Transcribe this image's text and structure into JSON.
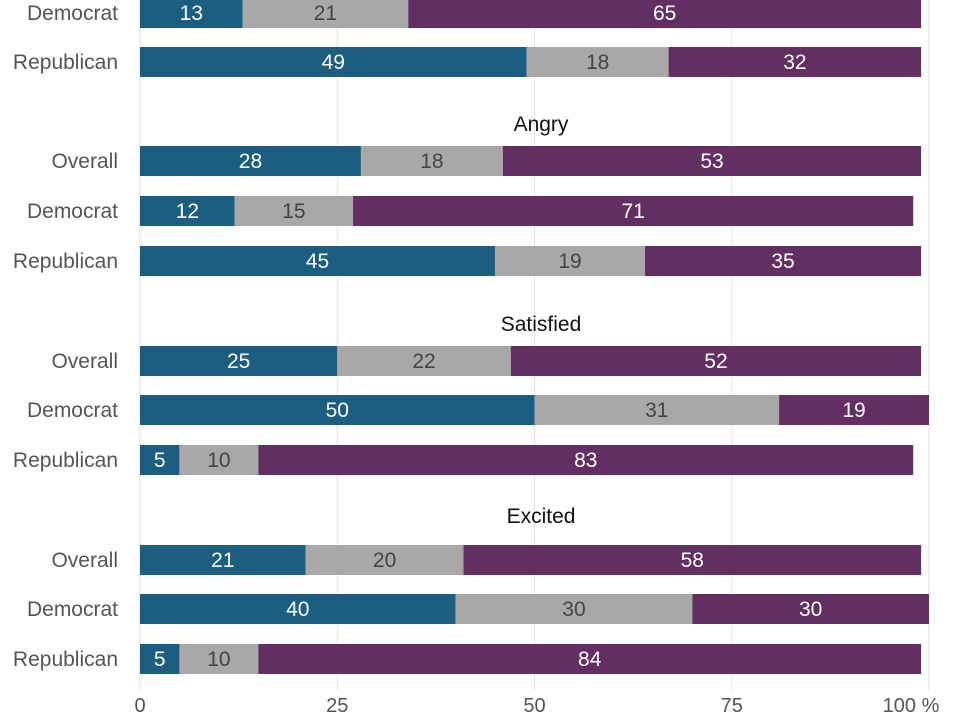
{
  "colors": {
    "series_0": "#1b5e80",
    "series_1": "#a8a8a8",
    "series_2": "#632f63",
    "label_on_dark": "#ffffff",
    "label_on_light": "#444444",
    "grid": "#e2e2e2"
  },
  "chart_data": {
    "type": "bar",
    "orientation": "horizontal",
    "stacked": true,
    "xlim": [
      0,
      100
    ],
    "x_ticks": [
      "0",
      "25",
      "50",
      "75",
      "100 %"
    ],
    "grid": true,
    "series": [
      {
        "color": "series_0"
      },
      {
        "color": "series_1"
      },
      {
        "color": "series_2"
      }
    ],
    "groups": [
      {
        "title": "",
        "rows": [
          {
            "label": "Democrat",
            "values": [
              13,
              21,
              65
            ]
          },
          {
            "label": "Republican",
            "values": [
              49,
              18,
              32
            ]
          }
        ]
      },
      {
        "title": "Angry",
        "rows": [
          {
            "label": "Overall",
            "values": [
              28,
              18,
              53
            ]
          },
          {
            "label": "Democrat",
            "values": [
              12,
              15,
              71
            ]
          },
          {
            "label": "Republican",
            "values": [
              45,
              19,
              35
            ]
          }
        ]
      },
      {
        "title": "Satisfied",
        "rows": [
          {
            "label": "Overall",
            "values": [
              25,
              22,
              52
            ]
          },
          {
            "label": "Democrat",
            "values": [
              50,
              31,
              19
            ]
          },
          {
            "label": "Republican",
            "values": [
              5,
              10,
              83
            ]
          }
        ]
      },
      {
        "title": "Excited",
        "rows": [
          {
            "label": "Overall",
            "values": [
              21,
              20,
              58
            ]
          },
          {
            "label": "Democrat",
            "values": [
              40,
              30,
              30
            ]
          },
          {
            "label": "Republican",
            "values": [
              5,
              10,
              84
            ]
          }
        ]
      }
    ]
  }
}
